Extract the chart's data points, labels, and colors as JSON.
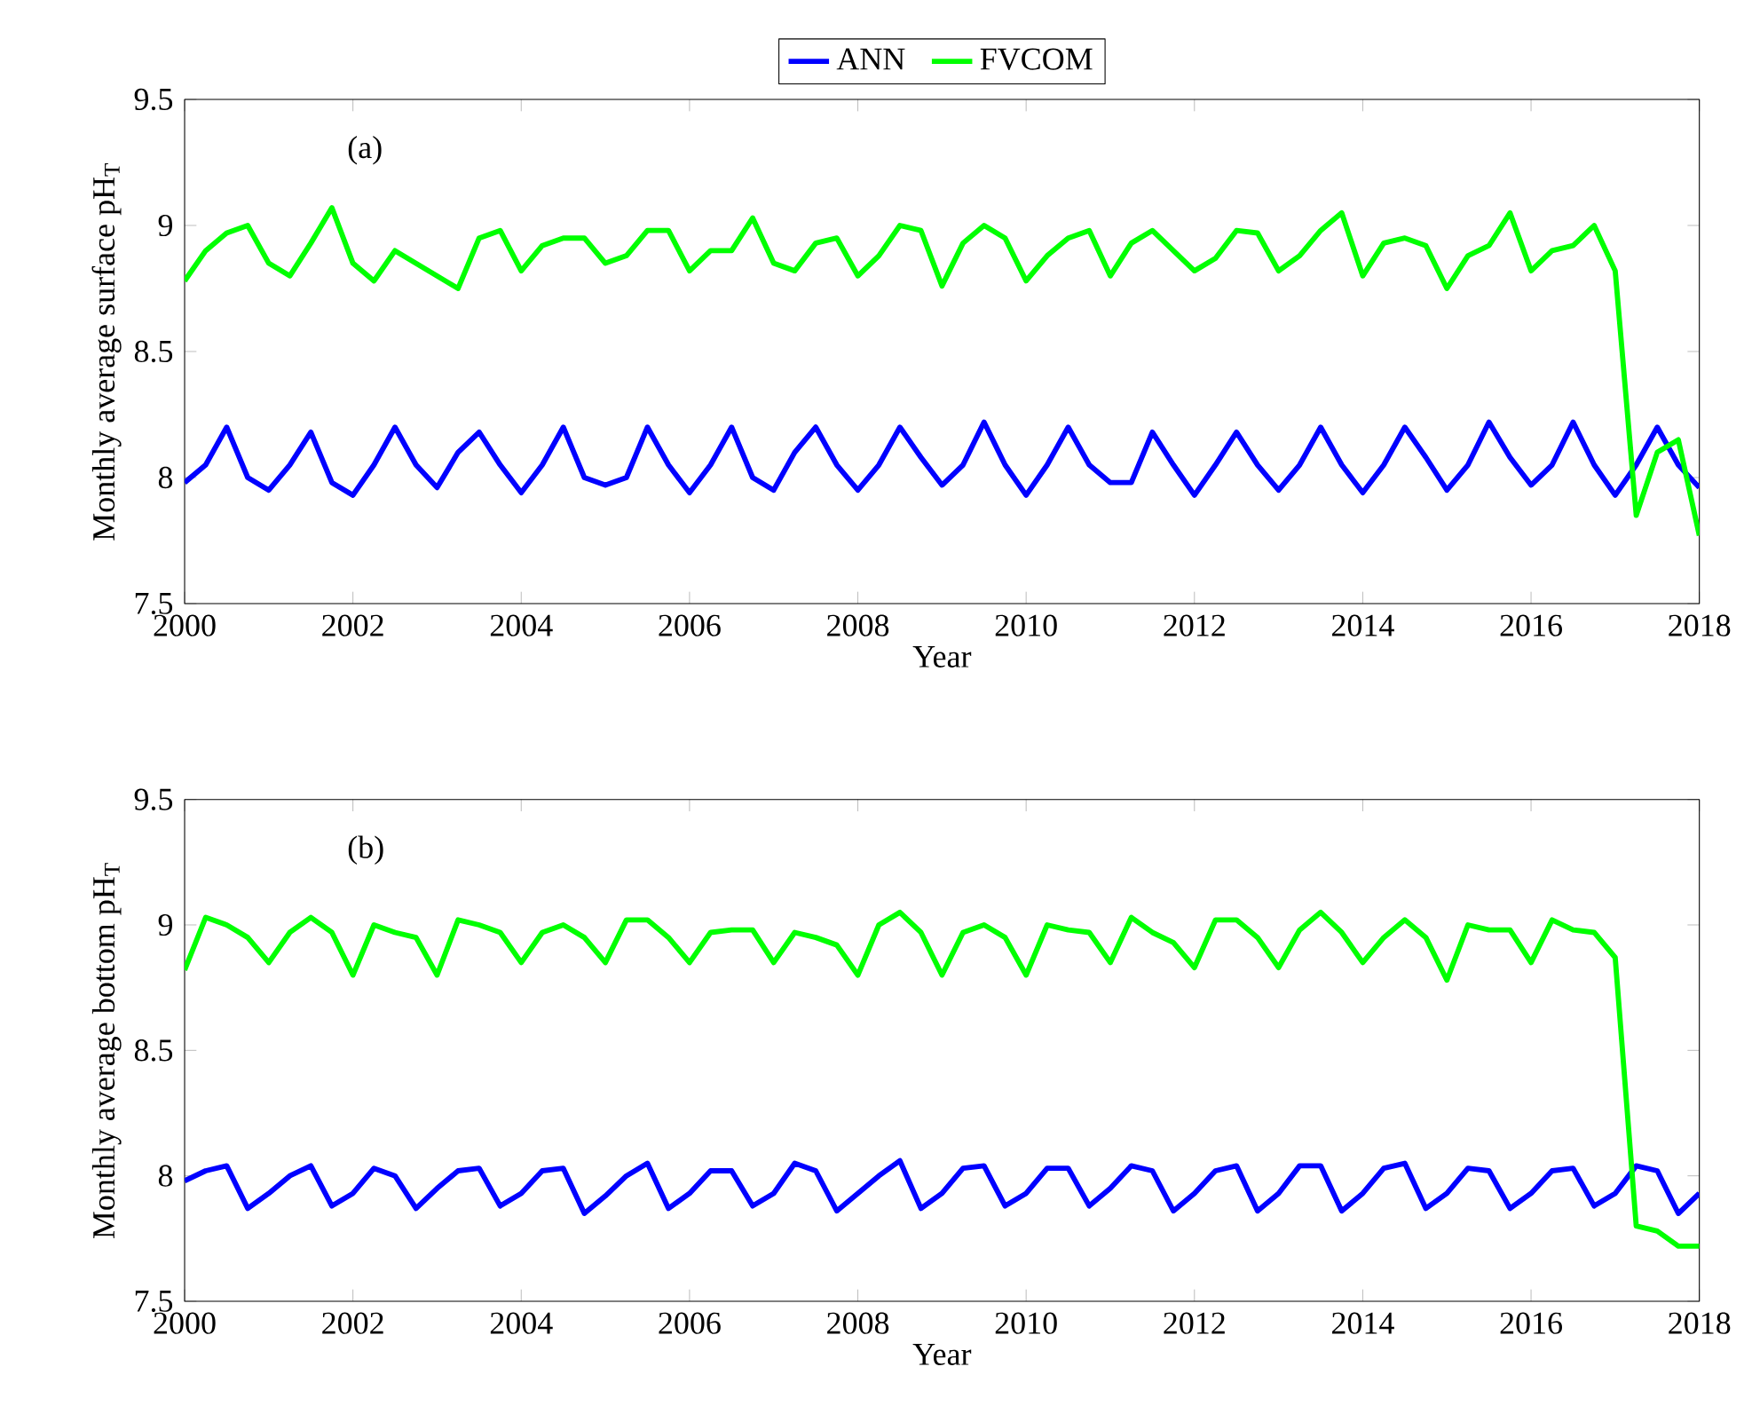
{
  "chart_data": [
    {
      "type": "line",
      "xlabel": "Year",
      "ylabel": "Monthly average surface pH$_{T}$",
      "annotations": [
        "(a)"
      ],
      "legend": "top",
      "marker": "none",
      "line_style": "solid",
      "grid": false,
      "xlim": [
        2000,
        2018
      ],
      "xticks": [
        2000,
        2002,
        2004,
        2006,
        2008,
        2010,
        2012,
        2014,
        2016,
        2018
      ],
      "ylim": [
        7.5,
        9.5
      ],
      "yticks": [
        7.5,
        8,
        8.5,
        9,
        9.5
      ],
      "x": [
        2000,
        2000.25,
        2000.5,
        2000.75,
        2001,
        2001.25,
        2001.5,
        2001.75,
        2002,
        2002.25,
        2002.5,
        2002.75,
        2003,
        2003.25,
        2003.5,
        2003.75,
        2004,
        2004.25,
        2004.5,
        2004.75,
        2005,
        2005.25,
        2005.5,
        2005.75,
        2006,
        2006.25,
        2006.5,
        2006.75,
        2007,
        2007.25,
        2007.5,
        2007.75,
        2008,
        2008.25,
        2008.5,
        2008.75,
        2009,
        2009.25,
        2009.5,
        2009.75,
        2010,
        2010.25,
        2010.5,
        2010.75,
        2011,
        2011.25,
        2011.5,
        2011.75,
        2012,
        2012.25,
        2012.5,
        2012.75,
        2013,
        2013.25,
        2013.5,
        2013.75,
        2014,
        2014.25,
        2014.5,
        2014.75,
        2015,
        2015.25,
        2015.5,
        2015.75,
        2016,
        2016.25,
        2016.5,
        2016.75,
        2017,
        2017.25,
        2017.5,
        2017.75,
        2018
      ],
      "series": [
        {
          "name": "ANN",
          "color": "#0000ff",
          "values": [
            7.98,
            8.05,
            8.2,
            8.0,
            7.95,
            8.05,
            8.18,
            7.98,
            7.93,
            8.05,
            8.2,
            8.05,
            7.96,
            8.1,
            8.18,
            8.05,
            7.94,
            8.05,
            8.2,
            8.0,
            7.97,
            8.0,
            8.2,
            8.05,
            7.94,
            8.05,
            8.2,
            8.0,
            7.95,
            8.1,
            8.2,
            8.05,
            7.95,
            8.05,
            8.2,
            8.08,
            7.97,
            8.05,
            8.22,
            8.05,
            7.93,
            8.05,
            8.2,
            8.05,
            7.98,
            7.98,
            8.18,
            8.05,
            7.93,
            8.05,
            8.18,
            8.05,
            7.95,
            8.05,
            8.2,
            8.05,
            7.94,
            8.05,
            8.2,
            8.08,
            7.95,
            8.05,
            8.22,
            8.08,
            7.97,
            8.05,
            8.22,
            8.05,
            7.93,
            8.05,
            8.2,
            8.05,
            7.96
          ]
        },
        {
          "name": "FVCOM",
          "color": "#00ff00",
          "values": [
            8.78,
            8.9,
            8.97,
            9.0,
            8.85,
            8.8,
            8.93,
            9.07,
            8.85,
            8.78,
            8.9,
            8.85,
            8.8,
            8.75,
            8.95,
            8.98,
            8.82,
            8.92,
            8.95,
            8.95,
            8.85,
            8.88,
            8.98,
            8.98,
            8.82,
            8.9,
            8.9,
            9.03,
            8.85,
            8.82,
            8.93,
            8.95,
            8.8,
            8.88,
            9.0,
            8.98,
            8.76,
            8.93,
            9.0,
            8.95,
            8.78,
            8.88,
            8.95,
            8.98,
            8.8,
            8.93,
            8.98,
            8.9,
            8.82,
            8.87,
            8.98,
            8.97,
            8.82,
            8.88,
            8.98,
            9.05,
            8.8,
            8.93,
            8.95,
            8.92,
            8.75,
            8.88,
            8.92,
            9.05,
            8.82,
            8.9,
            8.92,
            9.0,
            8.82,
            7.85,
            8.1,
            8.15,
            7.77
          ]
        }
      ]
    },
    {
      "type": "line",
      "xlabel": "Year",
      "ylabel": "Monthly average bottom pH$_{T}$",
      "annotations": [
        "(b)"
      ],
      "marker": "none",
      "line_style": "solid",
      "grid": false,
      "xlim": [
        2000,
        2018
      ],
      "xticks": [
        2000,
        2002,
        2004,
        2006,
        2008,
        2010,
        2012,
        2014,
        2016,
        2018
      ],
      "ylim": [
        7.5,
        9.5
      ],
      "yticks": [
        7.5,
        8,
        8.5,
        9,
        9.5
      ],
      "x": [
        2000,
        2000.25,
        2000.5,
        2000.75,
        2001,
        2001.25,
        2001.5,
        2001.75,
        2002,
        2002.25,
        2002.5,
        2002.75,
        2003,
        2003.25,
        2003.5,
        2003.75,
        2004,
        2004.25,
        2004.5,
        2004.75,
        2005,
        2005.25,
        2005.5,
        2005.75,
        2006,
        2006.25,
        2006.5,
        2006.75,
        2007,
        2007.25,
        2007.5,
        2007.75,
        2008,
        2008.25,
        2008.5,
        2008.75,
        2009,
        2009.25,
        2009.5,
        2009.75,
        2010,
        2010.25,
        2010.5,
        2010.75,
        2011,
        2011.25,
        2011.5,
        2011.75,
        2012,
        2012.25,
        2012.5,
        2012.75,
        2013,
        2013.25,
        2013.5,
        2013.75,
        2014,
        2014.25,
        2014.5,
        2014.75,
        2015,
        2015.25,
        2015.5,
        2015.75,
        2016,
        2016.25,
        2016.5,
        2016.75,
        2017,
        2017.25,
        2017.5,
        2017.75,
        2018
      ],
      "series": [
        {
          "color": "#0000ff",
          "values": [
            7.98,
            8.02,
            8.04,
            7.87,
            7.93,
            8.0,
            8.04,
            7.88,
            7.93,
            8.03,
            8.0,
            7.87,
            7.95,
            8.02,
            8.03,
            7.88,
            7.93,
            8.02,
            8.03,
            7.85,
            7.92,
            8.0,
            8.05,
            7.87,
            7.93,
            8.02,
            8.02,
            7.88,
            7.93,
            8.05,
            8.02,
            7.86,
            7.93,
            8.0,
            8.06,
            7.87,
            7.93,
            8.03,
            8.04,
            7.88,
            7.93,
            8.03,
            8.03,
            7.88,
            7.95,
            8.04,
            8.02,
            7.86,
            7.93,
            8.02,
            8.04,
            7.86,
            7.93,
            8.04,
            8.04,
            7.86,
            7.93,
            8.03,
            8.05,
            7.87,
            7.93,
            8.03,
            8.02,
            7.87,
            7.93,
            8.02,
            8.03,
            7.88,
            7.93,
            8.04,
            8.02,
            7.85,
            7.93
          ]
        },
        {
          "color": "#00ff00",
          "values": [
            8.82,
            9.03,
            9.0,
            8.95,
            8.85,
            8.97,
            9.03,
            8.97,
            8.8,
            9.0,
            8.97,
            8.95,
            8.8,
            9.02,
            9.0,
            8.97,
            8.85,
            8.97,
            9.0,
            8.95,
            8.85,
            9.02,
            9.02,
            8.95,
            8.85,
            8.97,
            8.98,
            8.98,
            8.85,
            8.97,
            8.95,
            8.92,
            8.8,
            9.0,
            9.05,
            8.97,
            8.8,
            8.97,
            9.0,
            8.95,
            8.8,
            9.0,
            8.98,
            8.97,
            8.85,
            9.03,
            8.97,
            8.93,
            8.83,
            9.02,
            9.02,
            8.95,
            8.83,
            8.98,
            9.05,
            8.97,
            8.85,
            8.95,
            9.02,
            8.95,
            8.78,
            9.0,
            8.98,
            8.98,
            8.85,
            9.02,
            8.98,
            8.97,
            8.87,
            7.8,
            7.78,
            7.72,
            7.72
          ]
        }
      ]
    }
  ]
}
